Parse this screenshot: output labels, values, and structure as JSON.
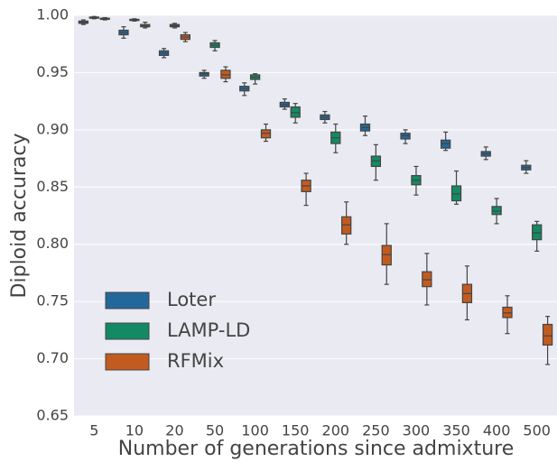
{
  "chart_data": {
    "type": "box",
    "x_label": "Number of generations since admixture",
    "y_label": "Diploid accuracy",
    "categories": [
      "5",
      "10",
      "20",
      "50",
      "100",
      "150",
      "200",
      "250",
      "300",
      "350",
      "400",
      "500"
    ],
    "ylim": [
      0.65,
      1.0
    ],
    "yticks": [
      {
        "value": 1.0,
        "label": "1.00"
      },
      0.95,
      {
        "value": 0.9,
        "label": "0.90"
      },
      0.85,
      {
        "value": 0.8,
        "label": "0.80"
      },
      0.75,
      {
        "value": 0.7,
        "label": "0.70"
      },
      0.65
    ],
    "grid": true,
    "legend": "lower left",
    "series": [
      {
        "name": "Loter",
        "color": "#23689b",
        "whislo": [
          0.992,
          0.98,
          0.963,
          0.945,
          0.93,
          0.918,
          0.906,
          0.895,
          0.888,
          0.882,
          0.874,
          0.862
        ],
        "q1": [
          0.993,
          0.983,
          0.965,
          0.947,
          0.934,
          0.92,
          0.909,
          0.899,
          0.892,
          0.884,
          0.877,
          0.865
        ],
        "med": [
          0.994,
          0.985,
          0.967,
          0.949,
          0.936,
          0.922,
          0.911,
          0.902,
          0.895,
          0.888,
          0.879,
          0.867
        ],
        "q3": [
          0.995,
          0.987,
          0.969,
          0.95,
          0.938,
          0.924,
          0.913,
          0.905,
          0.897,
          0.891,
          0.881,
          0.869
        ],
        "whishi": [
          0.996,
          0.99,
          0.971,
          0.952,
          0.941,
          0.927,
          0.916,
          0.912,
          0.9,
          0.898,
          0.885,
          0.873
        ]
      },
      {
        "name": "LAMP-LD",
        "color": "#138a63",
        "whislo": [
          0.997,
          0.995,
          0.989,
          0.969,
          0.94,
          0.906,
          0.88,
          0.856,
          0.843,
          0.835,
          0.818,
          0.794
        ],
        "q1": [
          0.9975,
          0.9955,
          0.99,
          0.972,
          0.944,
          0.911,
          0.888,
          0.868,
          0.852,
          0.838,
          0.826,
          0.804
        ],
        "med": [
          0.998,
          0.996,
          0.991,
          0.974,
          0.946,
          0.915,
          0.893,
          0.873,
          0.856,
          0.844,
          0.829,
          0.81
        ],
        "q3": [
          0.9985,
          0.9965,
          0.992,
          0.976,
          0.948,
          0.92,
          0.898,
          0.877,
          0.86,
          0.851,
          0.833,
          0.817
        ],
        "whishi": [
          0.999,
          0.997,
          0.993,
          0.978,
          0.949,
          0.923,
          0.905,
          0.887,
          0.868,
          0.864,
          0.84,
          0.82
        ]
      },
      {
        "name": "RFMix",
        "color": "#c25b20",
        "whislo": [
          0.996,
          0.989,
          0.977,
          0.942,
          0.89,
          0.834,
          0.8,
          0.765,
          0.747,
          0.734,
          0.722,
          0.695
        ],
        "q1": [
          0.9965,
          0.99,
          0.979,
          0.945,
          0.893,
          0.846,
          0.809,
          0.782,
          0.763,
          0.749,
          0.736,
          0.712
        ],
        "med": [
          0.997,
          0.991,
          0.981,
          0.948,
          0.897,
          0.851,
          0.817,
          0.791,
          0.769,
          0.757,
          0.74,
          0.72
        ],
        "q3": [
          0.9975,
          0.992,
          0.983,
          0.952,
          0.9,
          0.856,
          0.824,
          0.799,
          0.776,
          0.765,
          0.745,
          0.73
        ],
        "whishi": [
          0.998,
          0.994,
          0.985,
          0.955,
          0.905,
          0.862,
          0.837,
          0.818,
          0.792,
          0.781,
          0.755,
          0.737
        ]
      }
    ]
  }
}
